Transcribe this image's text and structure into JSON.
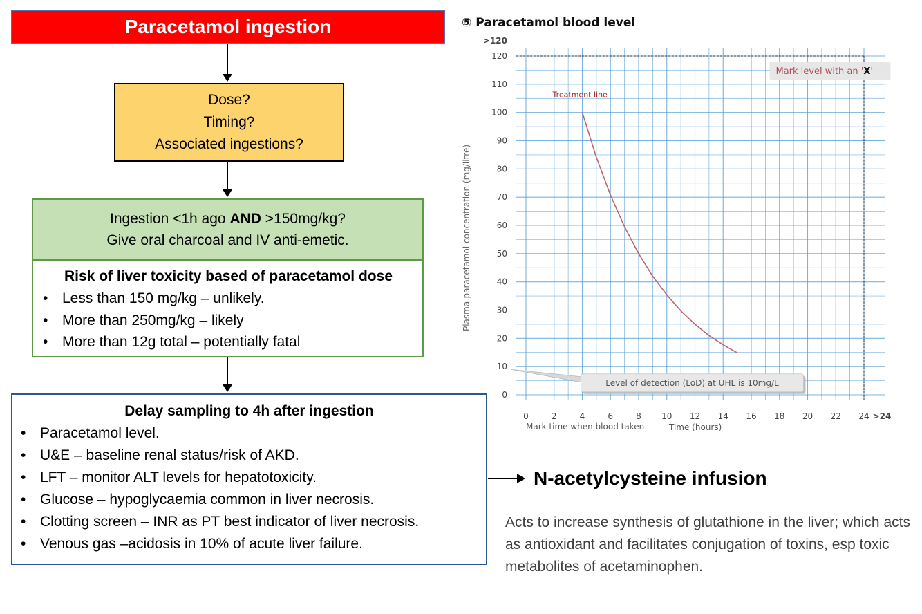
{
  "flowchart": {
    "title": "Paracetamol ingestion",
    "questions": [
      "Dose?",
      "Timing?",
      "Associated ingestions?"
    ],
    "charcoal": {
      "line1_pre": "Ingestion <1h ago ",
      "line1_bold": "AND",
      "line1_post": " >150mg/kg?",
      "line2": "Give oral charcoal and IV anti-emetic."
    },
    "risk": {
      "heading": "Risk of liver toxicity based of paracetamol dose",
      "items": [
        "Less than 150 mg/kg – unlikely.",
        "More than 250mg/kg – likely",
        "More than 12g total – potentially fatal"
      ]
    },
    "sampling": {
      "heading": "Delay sampling to 4h after ingestion",
      "items": [
        "Paracetamol level.",
        "U&E – baseline renal status/risk of AKD.",
        "LFT – monitor ALT levels for hepatotoxicity.",
        "Glucose – hypoglycaemia common in liver necrosis.",
        "Clotting screen – INR  as PT best indicator of liver necrosis.",
        "Venous gas –acidosis in 10% of acute liver failure."
      ]
    },
    "treatment": {
      "title": "N-acetylcysteine infusion",
      "description": "Acts to increase synthesis of glutathione in the liver; which acts as antioxidant and facilitates conjugation of toxins, esp toxic metabolites of acetaminophen."
    }
  },
  "chart_data": {
    "type": "line",
    "title": "⑤  Paracetamol blood level",
    "ylabel": "Plasma-paracetamol concentration (mg/litre)",
    "xlabel": "Time (hours)",
    "xlabel_left": "Mark time when blood taken",
    "y_ticks": [
      0,
      10,
      20,
      30,
      40,
      50,
      60,
      70,
      80,
      90,
      100,
      110,
      120
    ],
    "y_top_label": ">120",
    "x_ticks": [
      0,
      2,
      4,
      6,
      8,
      10,
      12,
      14,
      16,
      18,
      20,
      22,
      24
    ],
    "x_end_label": ">24",
    "xlim": [
      0,
      24
    ],
    "ylim": [
      0,
      120
    ],
    "series": [
      {
        "name": "Treatment line",
        "x": [
          4,
          5,
          6,
          7,
          8,
          9,
          10,
          11,
          12,
          13,
          14,
          15
        ],
        "y": [
          100,
          84.1,
          70.7,
          59.5,
          50.0,
          42.0,
          35.4,
          29.7,
          25.0,
          21.0,
          17.7,
          14.9
        ]
      }
    ],
    "annotations": {
      "mark_prefix": "Mark level with an '",
      "mark_symbol": "X",
      "mark_suffix": "'",
      "lod": "Level of detection (LoD) at UHL is 10mg/L"
    },
    "colors": {
      "grid": "#4d9bd6",
      "curve": "#c0646c",
      "treatment_label": "#a02828"
    }
  }
}
